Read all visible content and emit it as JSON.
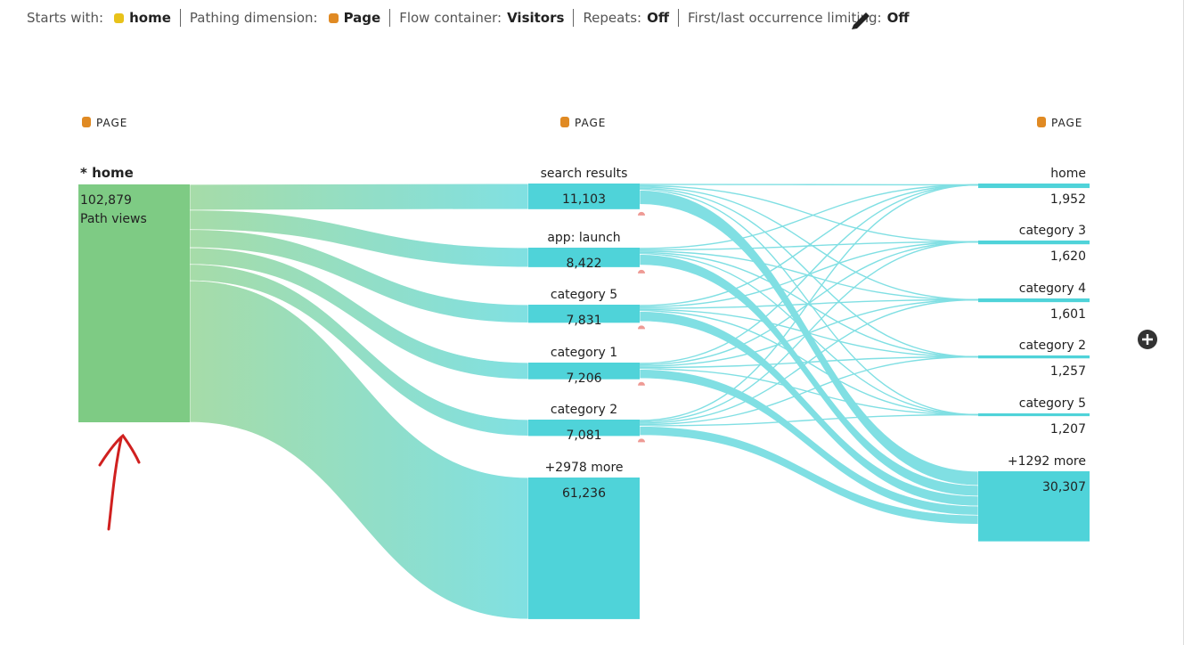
{
  "toolbar": {
    "items": [
      {
        "label": "Starts with:",
        "value": "home"
      },
      {
        "label": "Pathing dimension:",
        "value": "Page"
      },
      {
        "label": "Flow container:",
        "value": "Visitors"
      },
      {
        "label": "Repeats:",
        "value": "Off"
      },
      {
        "label": "First/last occurrence limiting:",
        "value": "Off"
      }
    ]
  },
  "columns": [
    {
      "header": "PAGE",
      "nodes": [
        {
          "label": "* home",
          "value": 102879,
          "value_label": "102,879",
          "caption": "Path views"
        }
      ]
    },
    {
      "header": "PAGE",
      "nodes": [
        {
          "label": "search results",
          "value": 11103,
          "value_label": "11,103"
        },
        {
          "label": "app: launch",
          "value": 8422,
          "value_label": "8,422"
        },
        {
          "label": "category 5",
          "value": 7831,
          "value_label": "7,831"
        },
        {
          "label": "category 1",
          "value": 7206,
          "value_label": "7,206"
        },
        {
          "label": "category 2",
          "value": 7081,
          "value_label": "7,081"
        },
        {
          "label": "+2978 more",
          "value": 61236,
          "value_label": "61,236"
        }
      ]
    },
    {
      "header": "PAGE",
      "nodes": [
        {
          "label": "home",
          "value": 1952,
          "value_label": "1,952"
        },
        {
          "label": "category 3",
          "value": 1620,
          "value_label": "1,620"
        },
        {
          "label": "category 4",
          "value": 1601,
          "value_label": "1,601"
        },
        {
          "label": "category 2",
          "value": 1257,
          "value_label": "1,257"
        },
        {
          "label": "category 5",
          "value": 1207,
          "value_label": "1,207"
        },
        {
          "label": "+1292 more",
          "value": 30307,
          "value_label": "30,307"
        }
      ]
    }
  ]
}
